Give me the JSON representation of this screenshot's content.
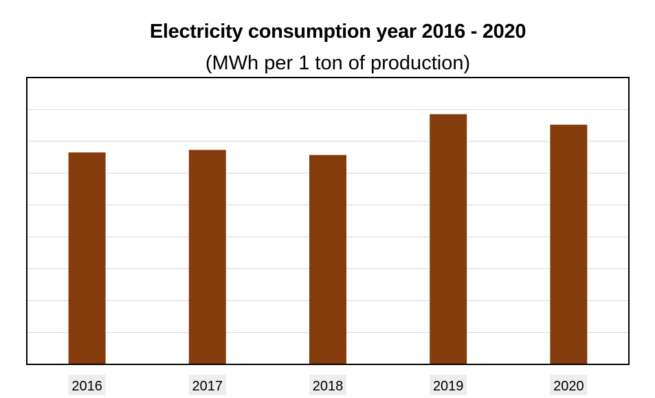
{
  "chart_data": {
    "type": "bar",
    "title": "Electricity consumption year 2016 - 2020",
    "subtitle": "(MWh per 1 ton of production)",
    "categories": [
      "2016",
      "2017",
      "2018",
      "2019",
      "2020"
    ],
    "values": [
      0.665,
      0.673,
      0.657,
      0.785,
      0.752
    ],
    "ylim": [
      0,
      0.9
    ],
    "gridlines": [
      0.1,
      0.2,
      0.3,
      0.4,
      0.5,
      0.6,
      0.7,
      0.8
    ],
    "grid": true,
    "legend": "none",
    "bar_color": "#843C0C",
    "grid_color": "#D9D9D9",
    "tick_label_background": "#EDEDED"
  }
}
